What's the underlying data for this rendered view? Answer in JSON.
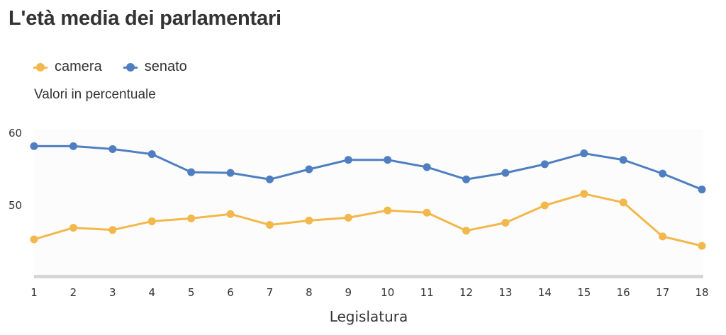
{
  "title": "L'età media dei parlamentari",
  "subtitle": "Valori in percentuale",
  "legend": [
    {
      "name": "camera",
      "color": "#F2B84B"
    },
    {
      "name": "senato",
      "color": "#4F7FC1"
    }
  ],
  "chart_data": {
    "type": "line",
    "title": "L'età media dei parlamentari",
    "subtitle": "Valori in percentuale",
    "xlabel": "Legislatura",
    "ylabel": "",
    "x": [
      1,
      2,
      3,
      4,
      5,
      6,
      7,
      8,
      9,
      10,
      11,
      12,
      13,
      14,
      15,
      16,
      17,
      18
    ],
    "yticks": [
      50,
      60
    ],
    "ylim": [
      40,
      60
    ],
    "grid": false,
    "legend_position": "top-left",
    "series": [
      {
        "name": "camera",
        "color": "#F2B84B",
        "values": [
          45.3,
          46.9,
          46.6,
          47.8,
          48.2,
          48.8,
          47.3,
          47.9,
          48.3,
          49.3,
          49.0,
          46.5,
          47.6,
          50.0,
          51.6,
          50.4,
          45.7,
          44.4
        ]
      },
      {
        "name": "senato",
        "color": "#4F7FC1",
        "values": [
          58.2,
          58.2,
          57.8,
          57.1,
          54.6,
          54.5,
          53.6,
          55.0,
          56.3,
          56.3,
          55.3,
          53.6,
          54.5,
          55.7,
          57.2,
          56.3,
          54.4,
          52.2
        ]
      }
    ]
  }
}
